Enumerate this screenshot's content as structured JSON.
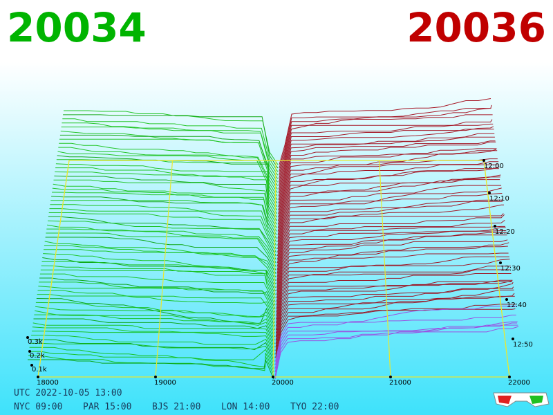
{
  "header": {
    "bid": "20034",
    "ask": "20036"
  },
  "price_axis": [
    "18000",
    "19000",
    "20000",
    "21000",
    "22000"
  ],
  "time_axis": [
    "12:00",
    "12:10",
    "12:20",
    "12:30",
    "12:40",
    "12:50"
  ],
  "depth_axis": [
    "0.3k",
    "0.2k",
    "0.1k"
  ],
  "footer": {
    "utc": "UTC 2022-10-05 13:00",
    "zones": [
      "NYC 09:00",
      "PAR 15:00",
      "BJS 21:00",
      "LON 14:00",
      "TYO 22:00"
    ]
  }
}
